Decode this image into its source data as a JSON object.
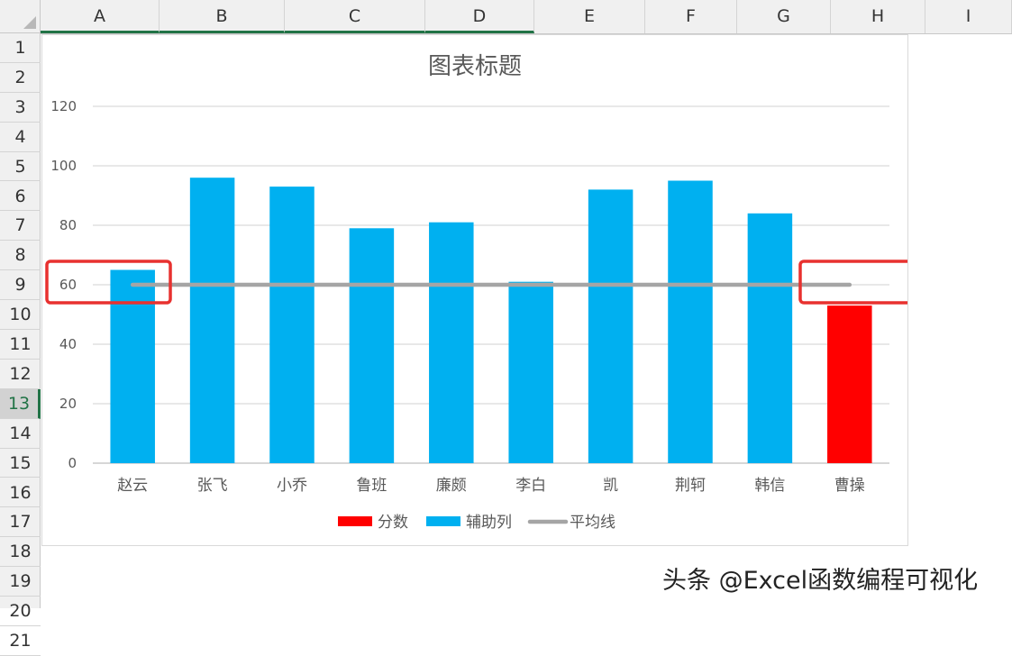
{
  "sheet": {
    "columns": [
      "A",
      "B",
      "C",
      "D",
      "E",
      "F",
      "G",
      "H",
      "I"
    ],
    "rows": [
      "1",
      "2",
      "3",
      "4",
      "5",
      "6",
      "7",
      "8",
      "9",
      "10",
      "11",
      "12",
      "13",
      "14",
      "15",
      "16",
      "17",
      "18",
      "19",
      "20",
      "21"
    ],
    "active_row": "13"
  },
  "chart_data": {
    "type": "bar",
    "title": "图表标题",
    "categories": [
      "赵云",
      "张飞",
      "小乔",
      "鲁班",
      "廉颇",
      "李白",
      "凯",
      "荆轲",
      "韩信",
      "曹操"
    ],
    "series": [
      {
        "name": "分数",
        "type": "bar",
        "color": "#ff0000",
        "values": [
          null,
          null,
          null,
          null,
          null,
          null,
          null,
          null,
          null,
          53
        ]
      },
      {
        "name": "辅助列",
        "type": "bar",
        "color": "#00b0f0",
        "values": [
          65,
          96,
          93,
          79,
          81,
          61,
          92,
          95,
          84,
          null
        ]
      },
      {
        "name": "平均线",
        "type": "line",
        "color": "#a5a5a5",
        "values": [
          60,
          60,
          60,
          60,
          60,
          60,
          60,
          60,
          60,
          60
        ]
      }
    ],
    "yticks": [
      "0",
      "20",
      "40",
      "60",
      "80",
      "100",
      "120"
    ],
    "ylim": [
      0,
      120
    ],
    "grid": true,
    "legend": "bottom",
    "highlight_color": "#e8312f"
  },
  "watermark": "头条 @Excel函数编程可视化"
}
